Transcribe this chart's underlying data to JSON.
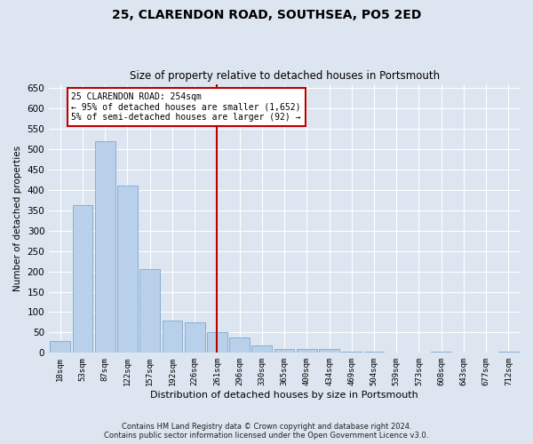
{
  "title": "25, CLARENDON ROAD, SOUTHSEA, PO5 2ED",
  "subtitle": "Size of property relative to detached houses in Portsmouth",
  "xlabel": "Distribution of detached houses by size in Portsmouth",
  "ylabel": "Number of detached properties",
  "footer_line1": "Contains HM Land Registry data © Crown copyright and database right 2024.",
  "footer_line2": "Contains public sector information licensed under the Open Government Licence v3.0.",
  "categories": [
    "18sqm",
    "53sqm",
    "87sqm",
    "122sqm",
    "157sqm",
    "192sqm",
    "226sqm",
    "261sqm",
    "296sqm",
    "330sqm",
    "365sqm",
    "400sqm",
    "434sqm",
    "469sqm",
    "504sqm",
    "539sqm",
    "573sqm",
    "608sqm",
    "643sqm",
    "677sqm",
    "712sqm"
  ],
  "values": [
    30,
    362,
    520,
    410,
    205,
    80,
    75,
    50,
    38,
    18,
    10,
    10,
    10,
    3,
    3,
    1,
    1,
    2,
    1,
    1,
    2
  ],
  "bar_color": "#b8d0ea",
  "bar_edge_color": "#7aaad0",
  "background_color": "#dde5f0",
  "grid_color": "#ffffff",
  "vline_x": 7,
  "vline_color": "#bb0000",
  "annotation_text": "25 CLARENDON ROAD: 254sqm\n← 95% of detached houses are smaller (1,652)\n5% of semi-detached houses are larger (92) →",
  "annotation_box_color": "#ffffff",
  "annotation_box_edge": "#bb0000",
  "ylim": [
    0,
    660
  ],
  "yticks": [
    0,
    50,
    100,
    150,
    200,
    250,
    300,
    350,
    400,
    450,
    500,
    550,
    600,
    650
  ]
}
